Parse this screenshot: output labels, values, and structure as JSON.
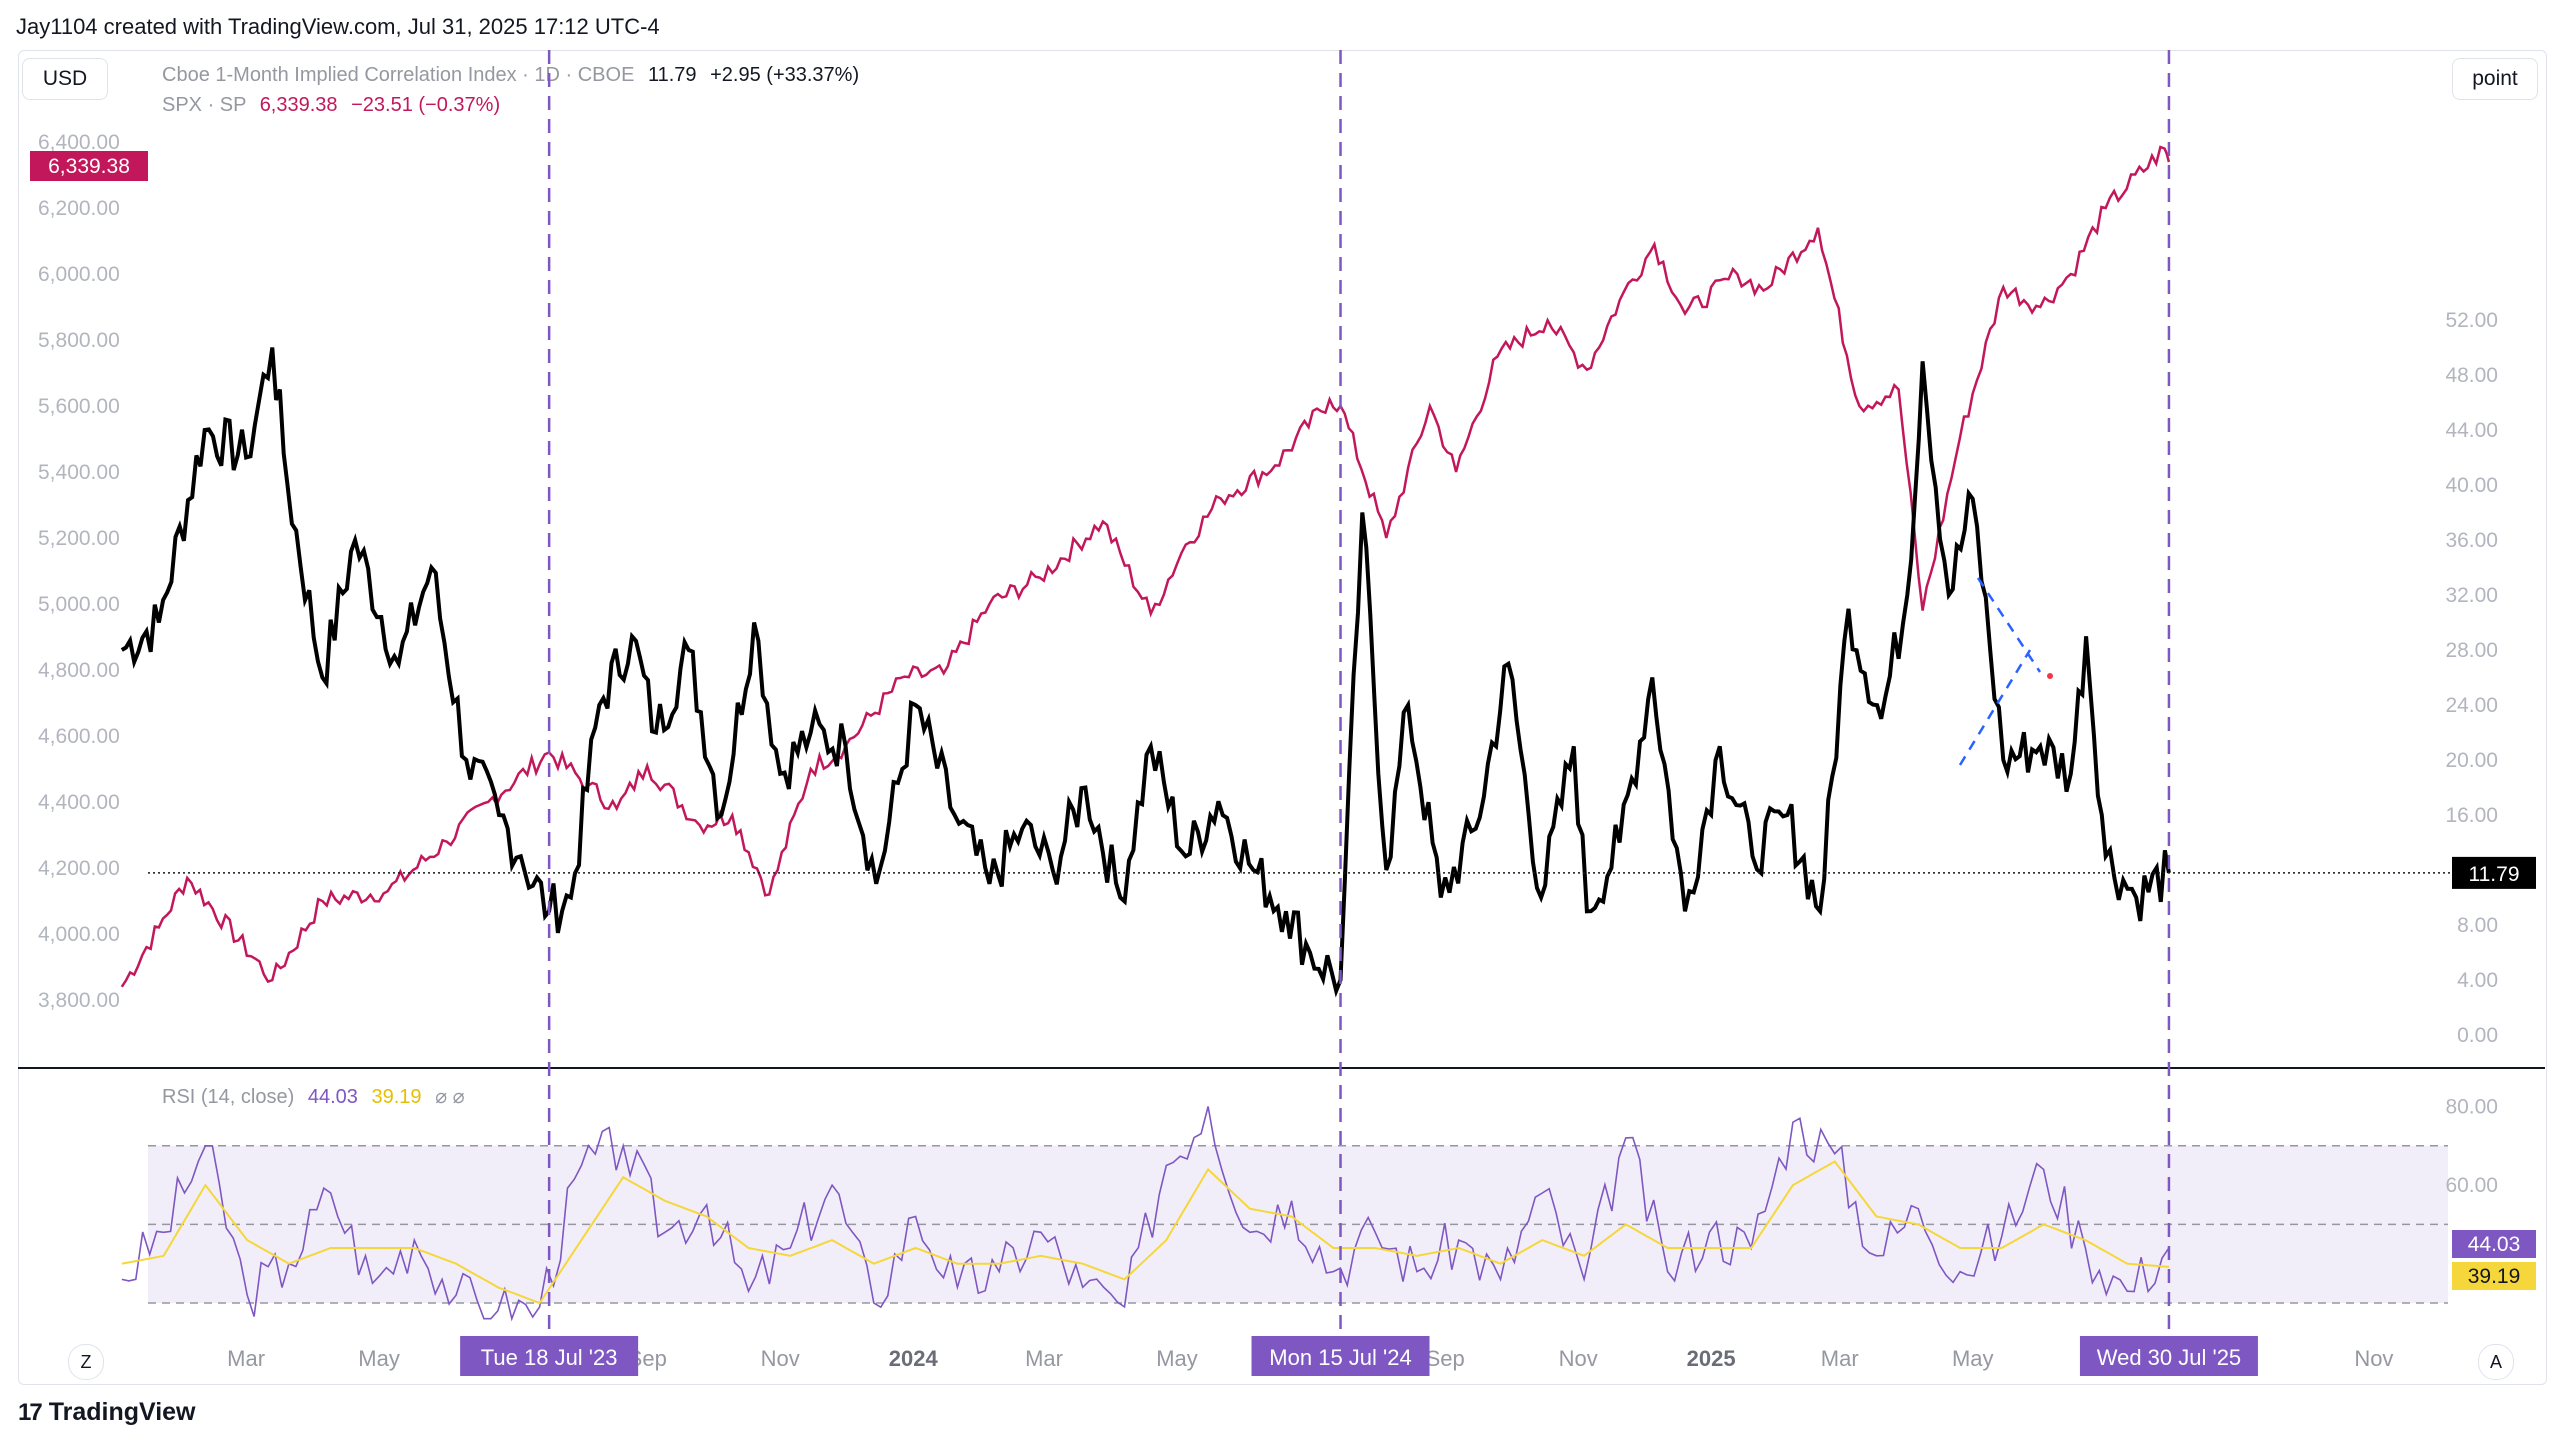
{
  "header": {
    "credit": "Jay1104 created with TradingView.com, Jul 31, 2025 17:12 UTC-4"
  },
  "buttons": {
    "currency": "USD",
    "scale": "point",
    "zoom_left": "Z",
    "auto": "A"
  },
  "legend": {
    "main_name": "Cboe 1-Month Implied Correlation Index · 1D · CBOE",
    "main_value": "11.79",
    "main_change": "+2.95 (+33.37%)",
    "spx_name": "SPX · SP",
    "spx_value": "6,339.38",
    "spx_change": "−23.51 (−0.37%)"
  },
  "rsi": {
    "label": "RSI (14, close)",
    "value": "44.03",
    "ma_value": "39.19",
    "icons": "⌀ ⌀"
  },
  "footer": {
    "brand": "TradingView",
    "logo": "17"
  },
  "colors": {
    "spx": "#c2185b",
    "corr": "#000000",
    "rsi": "#7e57c2",
    "rsi_ma": "#f5d73b",
    "marker": "#7e57c2"
  },
  "chart_data": [
    {
      "type": "line",
      "title": "",
      "series": [
        {
          "name": "Cboe 1-Month Implied Correlation Index",
          "axis": "right",
          "dates": [
            "2023-01-03",
            "2023-01-20",
            "2023-02-10",
            "2023-03-01",
            "2023-03-13",
            "2023-03-20",
            "2023-04-05",
            "2023-04-20",
            "2023-05-10",
            "2023-05-25",
            "2023-06-10",
            "2023-06-25",
            "2023-07-05",
            "2023-07-18",
            "2023-07-28",
            "2023-08-10",
            "2023-08-25",
            "2023-09-05",
            "2023-09-20",
            "2023-10-05",
            "2023-10-20",
            "2023-11-01",
            "2023-11-15",
            "2023-12-01",
            "2023-12-15",
            "2024-01-02",
            "2024-01-20",
            "2024-02-05",
            "2024-02-20",
            "2024-03-05",
            "2024-03-20",
            "2024-04-05",
            "2024-04-19",
            "2024-05-05",
            "2024-05-20",
            "2024-06-05",
            "2024-06-20",
            "2024-07-01",
            "2024-07-15",
            "2024-07-25",
            "2024-08-05",
            "2024-08-15",
            "2024-08-30",
            "2024-09-15",
            "2024-09-30",
            "2024-10-15",
            "2024-10-30",
            "2024-11-05",
            "2024-11-20",
            "2024-12-05",
            "2024-12-20",
            "2025-01-05",
            "2025-01-20",
            "2025-02-05",
            "2025-02-20",
            "2025-03-05",
            "2025-03-20",
            "2025-04-01",
            "2025-04-08",
            "2025-04-20",
            "2025-05-01",
            "2025-05-15",
            "2025-06-01",
            "2025-06-15",
            "2025-06-22",
            "2025-07-01",
            "2025-07-15",
            "2025-07-30"
          ],
          "values": [
            28,
            30,
            44,
            42,
            50,
            40,
            26,
            36,
            27,
            34,
            20,
            16,
            13,
            9,
            10,
            24,
            29,
            22,
            28,
            16,
            30,
            19,
            22,
            21,
            11,
            24,
            16,
            11,
            15,
            12,
            18,
            10,
            21,
            13,
            17,
            12,
            9,
            6,
            4,
            38,
            12,
            24,
            10,
            15,
            27,
            10,
            21,
            9,
            14,
            26,
            9,
            21,
            13,
            16,
            9,
            31,
            23,
            32,
            49,
            32,
            39,
            20,
            21,
            19,
            29,
            13,
            10,
            11.79
          ]
        },
        {
          "name": "SPX",
          "axis": "left",
          "dates": [
            "2023-01-03",
            "2023-01-20",
            "2023-02-02",
            "2023-03-13",
            "2023-04-05",
            "2023-05-05",
            "2023-06-01",
            "2023-06-20",
            "2023-07-18",
            "2023-08-05",
            "2023-08-18",
            "2023-09-01",
            "2023-09-25",
            "2023-10-10",
            "2023-10-27",
            "2023-11-15",
            "2023-12-01",
            "2023-12-28",
            "2024-01-15",
            "2024-02-05",
            "2024-02-28",
            "2024-03-28",
            "2024-04-19",
            "2024-05-05",
            "2024-05-21",
            "2024-06-15",
            "2024-07-10",
            "2024-07-15",
            "2024-08-05",
            "2024-08-25",
            "2024-09-06",
            "2024-09-25",
            "2024-10-18",
            "2024-11-05",
            "2024-11-20",
            "2024-12-06",
            "2024-12-20",
            "2025-01-13",
            "2025-01-25",
            "2025-02-19",
            "2025-03-10",
            "2025-03-28",
            "2025-04-08",
            "2025-04-25",
            "2025-05-15",
            "2025-06-01",
            "2025-06-15",
            "2025-07-01",
            "2025-07-28",
            "2025-07-30"
          ],
          "values": [
            3840,
            4020,
            4170,
            3860,
            4100,
            4130,
            4280,
            4400,
            4550,
            4450,
            4380,
            4510,
            4330,
            4360,
            4120,
            4500,
            4570,
            4780,
            4790,
            5000,
            5080,
            5250,
            4970,
            5180,
            5320,
            5420,
            5620,
            5600,
            5200,
            5600,
            5400,
            5750,
            5860,
            5710,
            5920,
            6090,
            5880,
            6000,
            5950,
            6140,
            5600,
            5650,
            4980,
            5500,
            5960,
            5900,
            6000,
            6200,
            6380,
            6339.38
          ]
        }
      ],
      "left_axis_ticks": [
        "3,800.00",
        "4,000.00",
        "4,200.00",
        "4,400.00",
        "4,600.00",
        "4,800.00",
        "5,000.00",
        "5,200.00",
        "5,400.00",
        "5,600.00",
        "5,800.00",
        "6,000.00",
        "6,200.00",
        "6,400.00"
      ],
      "right_axis_ticks": [
        "0.00",
        "4.00",
        "8.00",
        "16.00",
        "20.00",
        "24.00",
        "28.00",
        "32.00",
        "36.00",
        "40.00",
        "44.00",
        "48.00",
        "52.00"
      ],
      "x_ticks": [
        "Mar",
        "May",
        "Sep",
        "Nov",
        "2024",
        "Mar",
        "May",
        "Sep",
        "Nov",
        "2025",
        "Mar",
        "May",
        "Nov"
      ],
      "markers": [
        "Tue 18 Jul '23",
        "Mon 15 Jul '24",
        "Wed 30 Jul '25"
      ],
      "price_labels": {
        "spx": "6,339.38",
        "corr": "11.79"
      }
    },
    {
      "type": "line",
      "title": "RSI (14, close)",
      "series": [
        {
          "name": "RSI",
          "values": [
            36,
            48,
            70,
            32,
            40,
            58,
            35,
            46,
            32,
            28,
            29,
            65,
            70,
            48,
            55,
            33,
            44,
            60,
            30,
            52,
            34,
            38,
            48,
            34,
            29,
            65,
            80,
            48,
            56,
            38,
            48,
            38,
            46,
            36,
            58,
            36,
            72,
            38,
            48,
            44,
            76,
            68,
            42,
            54,
            38,
            47,
            64,
            44,
            33,
            44.03
          ]
        },
        {
          "name": "RSI MA",
          "values": [
            40,
            42,
            60,
            46,
            40,
            44,
            44,
            44,
            40,
            34,
            30,
            46,
            62,
            56,
            52,
            44,
            42,
            46,
            40,
            44,
            40,
            40,
            42,
            40,
            36,
            46,
            64,
            54,
            52,
            44,
            44,
            42,
            44,
            40,
            46,
            42,
            50,
            44,
            44,
            44,
            60,
            66,
            52,
            50,
            44,
            44,
            50,
            46,
            40,
            39.19
          ]
        }
      ],
      "y_ticks": [
        "60.00",
        "80.00"
      ],
      "band": [
        30,
        70
      ]
    }
  ]
}
